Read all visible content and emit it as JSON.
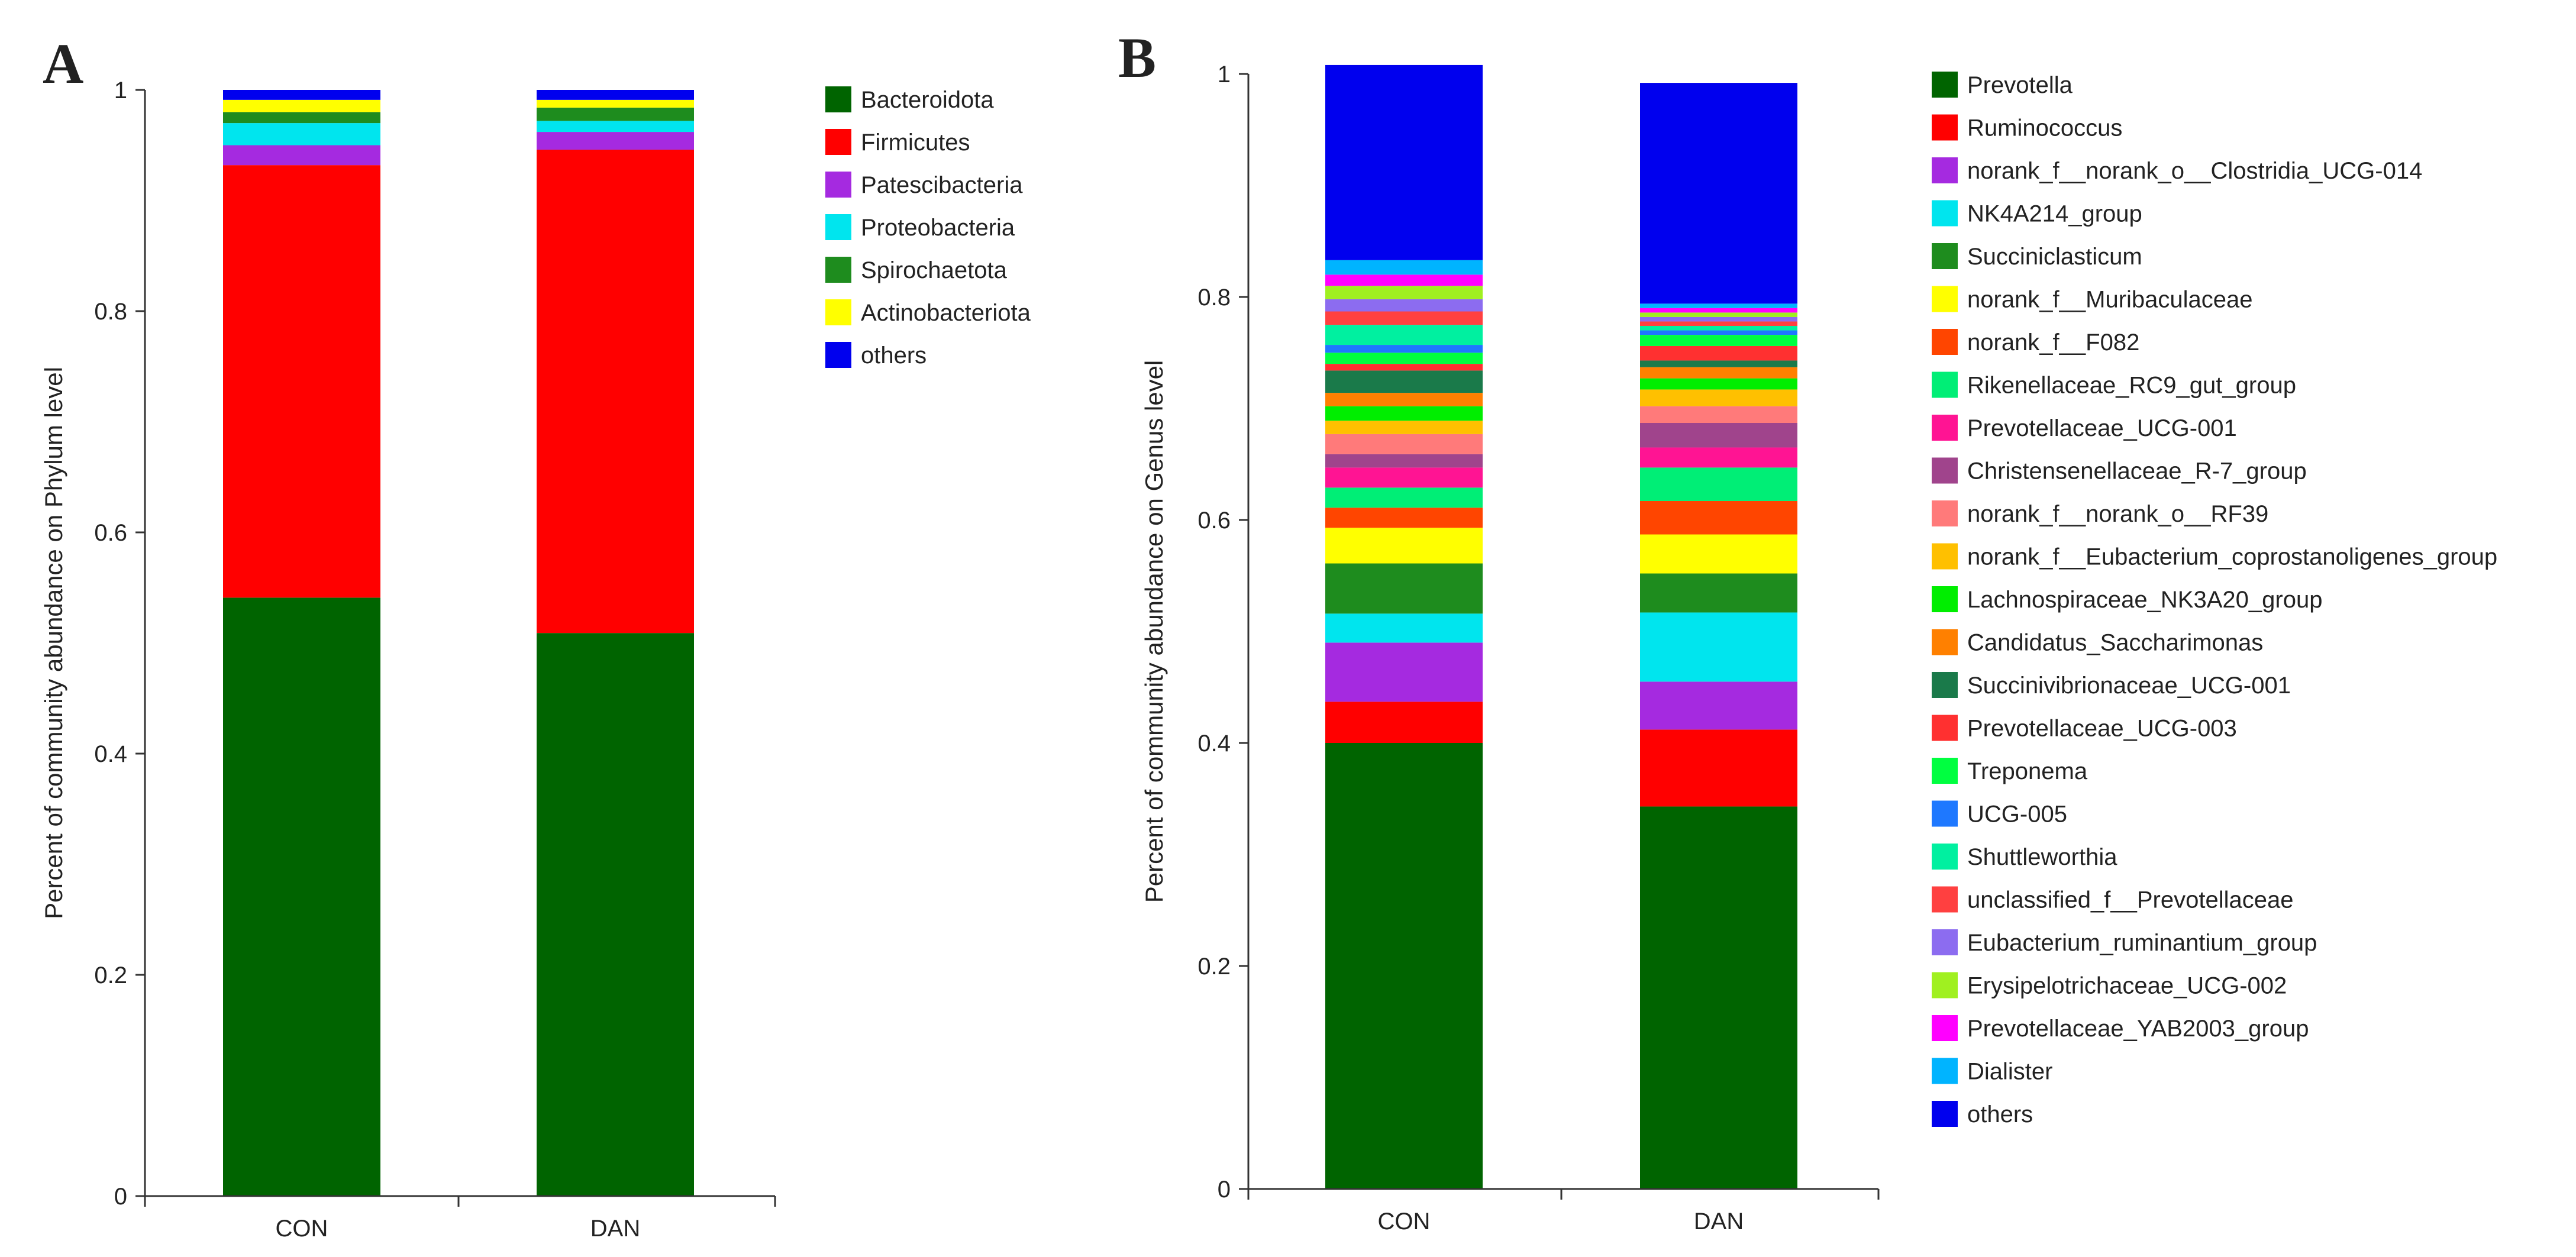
{
  "chart_data": [
    {
      "panel": "A",
      "type": "bar",
      "stacked": true,
      "title": "",
      "xlabel": "",
      "ylabel": "Percent of community abundance on Phylum level",
      "ylim": [
        0,
        1
      ],
      "yticks": [
        0,
        0.2,
        0.4,
        0.6,
        0.8,
        1
      ],
      "ytick_labels": [
        "0",
        "0.2",
        "0.4",
        "0.6",
        "0.8",
        "1"
      ],
      "categories": [
        "CON",
        "DAN"
      ],
      "legend_position": "right",
      "series": [
        {
          "name": "Bacteroidota",
          "color": "#006400",
          "values": [
            0.541,
            0.509
          ]
        },
        {
          "name": "Firmicutes",
          "color": "#ff0000",
          "values": [
            0.391,
            0.437
          ]
        },
        {
          "name": "Patescibacteria",
          "color": "#a52ae0",
          "values": [
            0.018,
            0.016
          ]
        },
        {
          "name": "Proteobacteria",
          "color": "#00e5ee",
          "values": [
            0.02,
            0.01
          ]
        },
        {
          "name": "Spirochaetota",
          "color": "#1e8c1e",
          "values": [
            0.01,
            0.012
          ]
        },
        {
          "name": "Actinobacteriota",
          "color": "#ffff00",
          "values": [
            0.011,
            0.007
          ]
        },
        {
          "name": "others",
          "color": "#0000ee",
          "values": [
            0.009,
            0.009
          ]
        }
      ]
    },
    {
      "panel": "B",
      "type": "bar",
      "stacked": true,
      "title": "",
      "xlabel": "",
      "ylabel": "Percent of community abundance on Genus level",
      "ylim": [
        0,
        1
      ],
      "yticks": [
        0,
        0.2,
        0.4,
        0.6,
        0.8,
        1
      ],
      "ytick_labels": [
        "0",
        "0.2",
        "0.4",
        "0.6",
        "0.8",
        "1"
      ],
      "categories": [
        "CON",
        "DAN"
      ],
      "legend_position": "right",
      "series": [
        {
          "name": "Prevotella",
          "color": "#006400",
          "values": [
            0.4,
            0.343
          ]
        },
        {
          "name": "Ruminococcus",
          "color": "#ff0000",
          "values": [
            0.037,
            0.069
          ]
        },
        {
          "name": "norank_f__norank_o__Clostridia_UCG-014",
          "color": "#a52ae0",
          "values": [
            0.053,
            0.043
          ]
        },
        {
          "name": "NK4A214_group",
          "color": "#00e5ee",
          "values": [
            0.026,
            0.062
          ]
        },
        {
          "name": "Succiniclasticum",
          "color": "#1e8c1e",
          "values": [
            0.045,
            0.035
          ]
        },
        {
          "name": "norank_f__Muribaculaceae",
          "color": "#ffff00",
          "values": [
            0.032,
            0.035
          ]
        },
        {
          "name": "norank_f__F082",
          "color": "#ff4500",
          "values": [
            0.018,
            0.03
          ]
        },
        {
          "name": "Rikenellaceae_RC9_gut_group",
          "color": "#00ee76",
          "values": [
            0.018,
            0.03
          ]
        },
        {
          "name": "Prevotellaceae_UCG-001",
          "color": "#ff1493",
          "values": [
            0.018,
            0.018
          ]
        },
        {
          "name": "Christensenellaceae_R-7_group",
          "color": "#a0448c",
          "values": [
            0.012,
            0.022
          ]
        },
        {
          "name": "norank_f__norank_o__RF39",
          "color": "#ff7a7a",
          "values": [
            0.018,
            0.015
          ]
        },
        {
          "name": "norank_f__Eubacterium_coprostanoligenes_group",
          "color": "#ffc000",
          "values": [
            0.012,
            0.015
          ]
        },
        {
          "name": "Lachnospiraceae_NK3A20_group",
          "color": "#00ee00",
          "values": [
            0.013,
            0.01
          ]
        },
        {
          "name": "Candidatus_Saccharimonas",
          "color": "#ff8000",
          "values": [
            0.012,
            0.01
          ]
        },
        {
          "name": "Succinivibrionaceae_UCG-001",
          "color": "#1a7a4a",
          "values": [
            0.02,
            0.006
          ]
        },
        {
          "name": "Prevotellaceae_UCG-003",
          "color": "#ff3030",
          "values": [
            0.006,
            0.013
          ]
        },
        {
          "name": "Treponema",
          "color": "#00ff40",
          "values": [
            0.01,
            0.01
          ]
        },
        {
          "name": "UCG-005",
          "color": "#1e78ff",
          "values": [
            0.007,
            0.004
          ]
        },
        {
          "name": "Shuttleworthia",
          "color": "#00f0a0",
          "values": [
            0.018,
            0.004
          ]
        },
        {
          "name": "unclassified_f__Prevotellaceae",
          "color": "#ff4040",
          "values": [
            0.012,
            0.004
          ]
        },
        {
          "name": "Eubacterium_ruminantium_group",
          "color": "#8c6cf0",
          "values": [
            0.011,
            0.004
          ]
        },
        {
          "name": "Erysipelotrichaceae_UCG-002",
          "color": "#a0f020",
          "values": [
            0.012,
            0.004
          ]
        },
        {
          "name": "Prevotellaceae_YAB2003_group",
          "color": "#ff00ff",
          "values": [
            0.01,
            0.004
          ]
        },
        {
          "name": "Dialister",
          "color": "#00b4ff",
          "values": [
            0.013,
            0.004
          ]
        },
        {
          "name": "others",
          "color": "#0000ee",
          "values": [
            0.175,
            0.198
          ]
        }
      ]
    }
  ],
  "labels": {
    "panel_a": "A",
    "panel_b": "B"
  }
}
